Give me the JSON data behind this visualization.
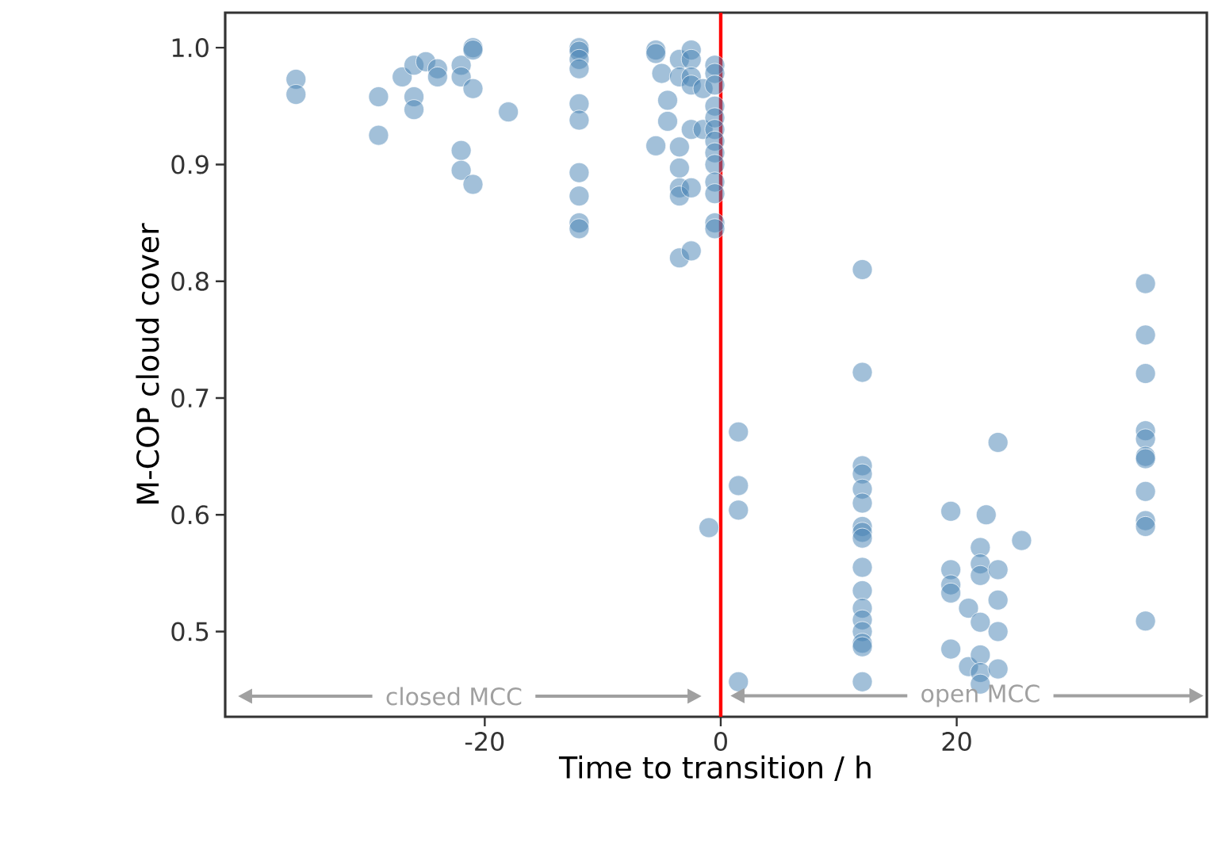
{
  "chart_data": {
    "type": "scatter",
    "xlabel": "Time to transition / h",
    "ylabel": "M-COP cloud cover",
    "xlim": [
      -42,
      41.2
    ],
    "ylim": [
      0.427,
      1.03
    ],
    "xticks": [
      -20,
      0,
      20
    ],
    "yticks": [
      0.5,
      0.6,
      0.7,
      0.8,
      0.9,
      {
        "value": 1.0,
        "label": "1.0"
      }
    ],
    "marker": "circle",
    "grid": false,
    "ref_lines": [
      {
        "axis": "x",
        "value": 0,
        "color": "#ff0000"
      }
    ],
    "annotations": [
      "closed MCC",
      {
        "text": "open MCC",
        "x": 22,
        "y": 0.445
      }
    ],
    "series": [
      {
        "color": "#4682b4",
        "x": [
          -36,
          -36,
          -29,
          -29,
          -27,
          -26,
          -26,
          -26,
          -25,
          -24,
          -24,
          -22,
          -22,
          -22,
          -22,
          -21,
          -21,
          -21,
          -21,
          -18,
          -12,
          -12,
          -12,
          -12,
          -12,
          -12,
          -12,
          -12,
          -12,
          -12,
          -5.5,
          -5.5,
          -5.5,
          -5,
          -4.5,
          -4.5,
          -3.5,
          -3.5,
          -3.5,
          -3.5,
          -3.5,
          -3.5,
          -3.5,
          -2.5,
          -2.5,
          -2.5,
          -2.5,
          -2.5,
          -2.5,
          -2.5,
          -1.5,
          -1.5,
          -0.5,
          -0.5,
          -0.5,
          -0.5,
          -0.5,
          -0.5,
          -0.5,
          -0.5,
          -0.5,
          -0.5,
          -0.5,
          -0.5,
          -0.5,
          -1,
          1.5,
          1.5,
          1.5,
          1.5,
          12,
          12,
          12,
          12,
          12,
          12,
          12,
          12,
          12,
          12,
          12,
          12,
          12,
          12,
          12,
          12,
          12,
          19.5,
          19.5,
          19.5,
          19.5,
          19.5,
          21,
          21,
          22,
          22,
          22,
          22,
          22,
          22,
          22,
          22.5,
          23.5,
          23.5,
          23.5,
          23.5,
          23.5,
          25.5,
          36,
          36,
          36,
          36,
          36,
          36,
          36,
          36,
          36,
          36,
          36
        ],
        "values": [
          0.973,
          0.96,
          0.958,
          0.925,
          0.975,
          0.985,
          0.958,
          0.947,
          0.988,
          0.982,
          0.975,
          0.985,
          0.975,
          0.912,
          0.895,
          1.0,
          0.998,
          0.965,
          0.883,
          0.945,
          1.0,
          0.997,
          0.99,
          0.982,
          0.952,
          0.938,
          0.893,
          0.873,
          0.85,
          0.845,
          0.998,
          0.995,
          0.916,
          0.978,
          0.955,
          0.937,
          0.99,
          0.975,
          0.915,
          0.897,
          0.88,
          0.873,
          0.82,
          0.998,
          0.99,
          0.975,
          0.968,
          0.93,
          0.88,
          0.826,
          0.965,
          0.93,
          0.985,
          0.978,
          0.968,
          0.95,
          0.94,
          0.93,
          0.92,
          0.91,
          0.9,
          0.885,
          0.875,
          0.85,
          0.845,
          0.589,
          0.671,
          0.625,
          0.604,
          0.457,
          0.81,
          0.722,
          0.642,
          0.635,
          0.622,
          0.61,
          0.59,
          0.585,
          0.58,
          0.555,
          0.535,
          0.52,
          0.51,
          0.5,
          0.49,
          0.487,
          0.457,
          0.603,
          0.553,
          0.54,
          0.533,
          0.485,
          0.52,
          0.47,
          0.572,
          0.558,
          0.548,
          0.508,
          0.48,
          0.465,
          0.455,
          0.6,
          0.662,
          0.553,
          0.527,
          0.5,
          0.468,
          0.578,
          0.798,
          0.754,
          0.721,
          0.672,
          0.665,
          0.65,
          0.648,
          0.62,
          0.595,
          0.59,
          0.509
        ]
      }
    ]
  }
}
